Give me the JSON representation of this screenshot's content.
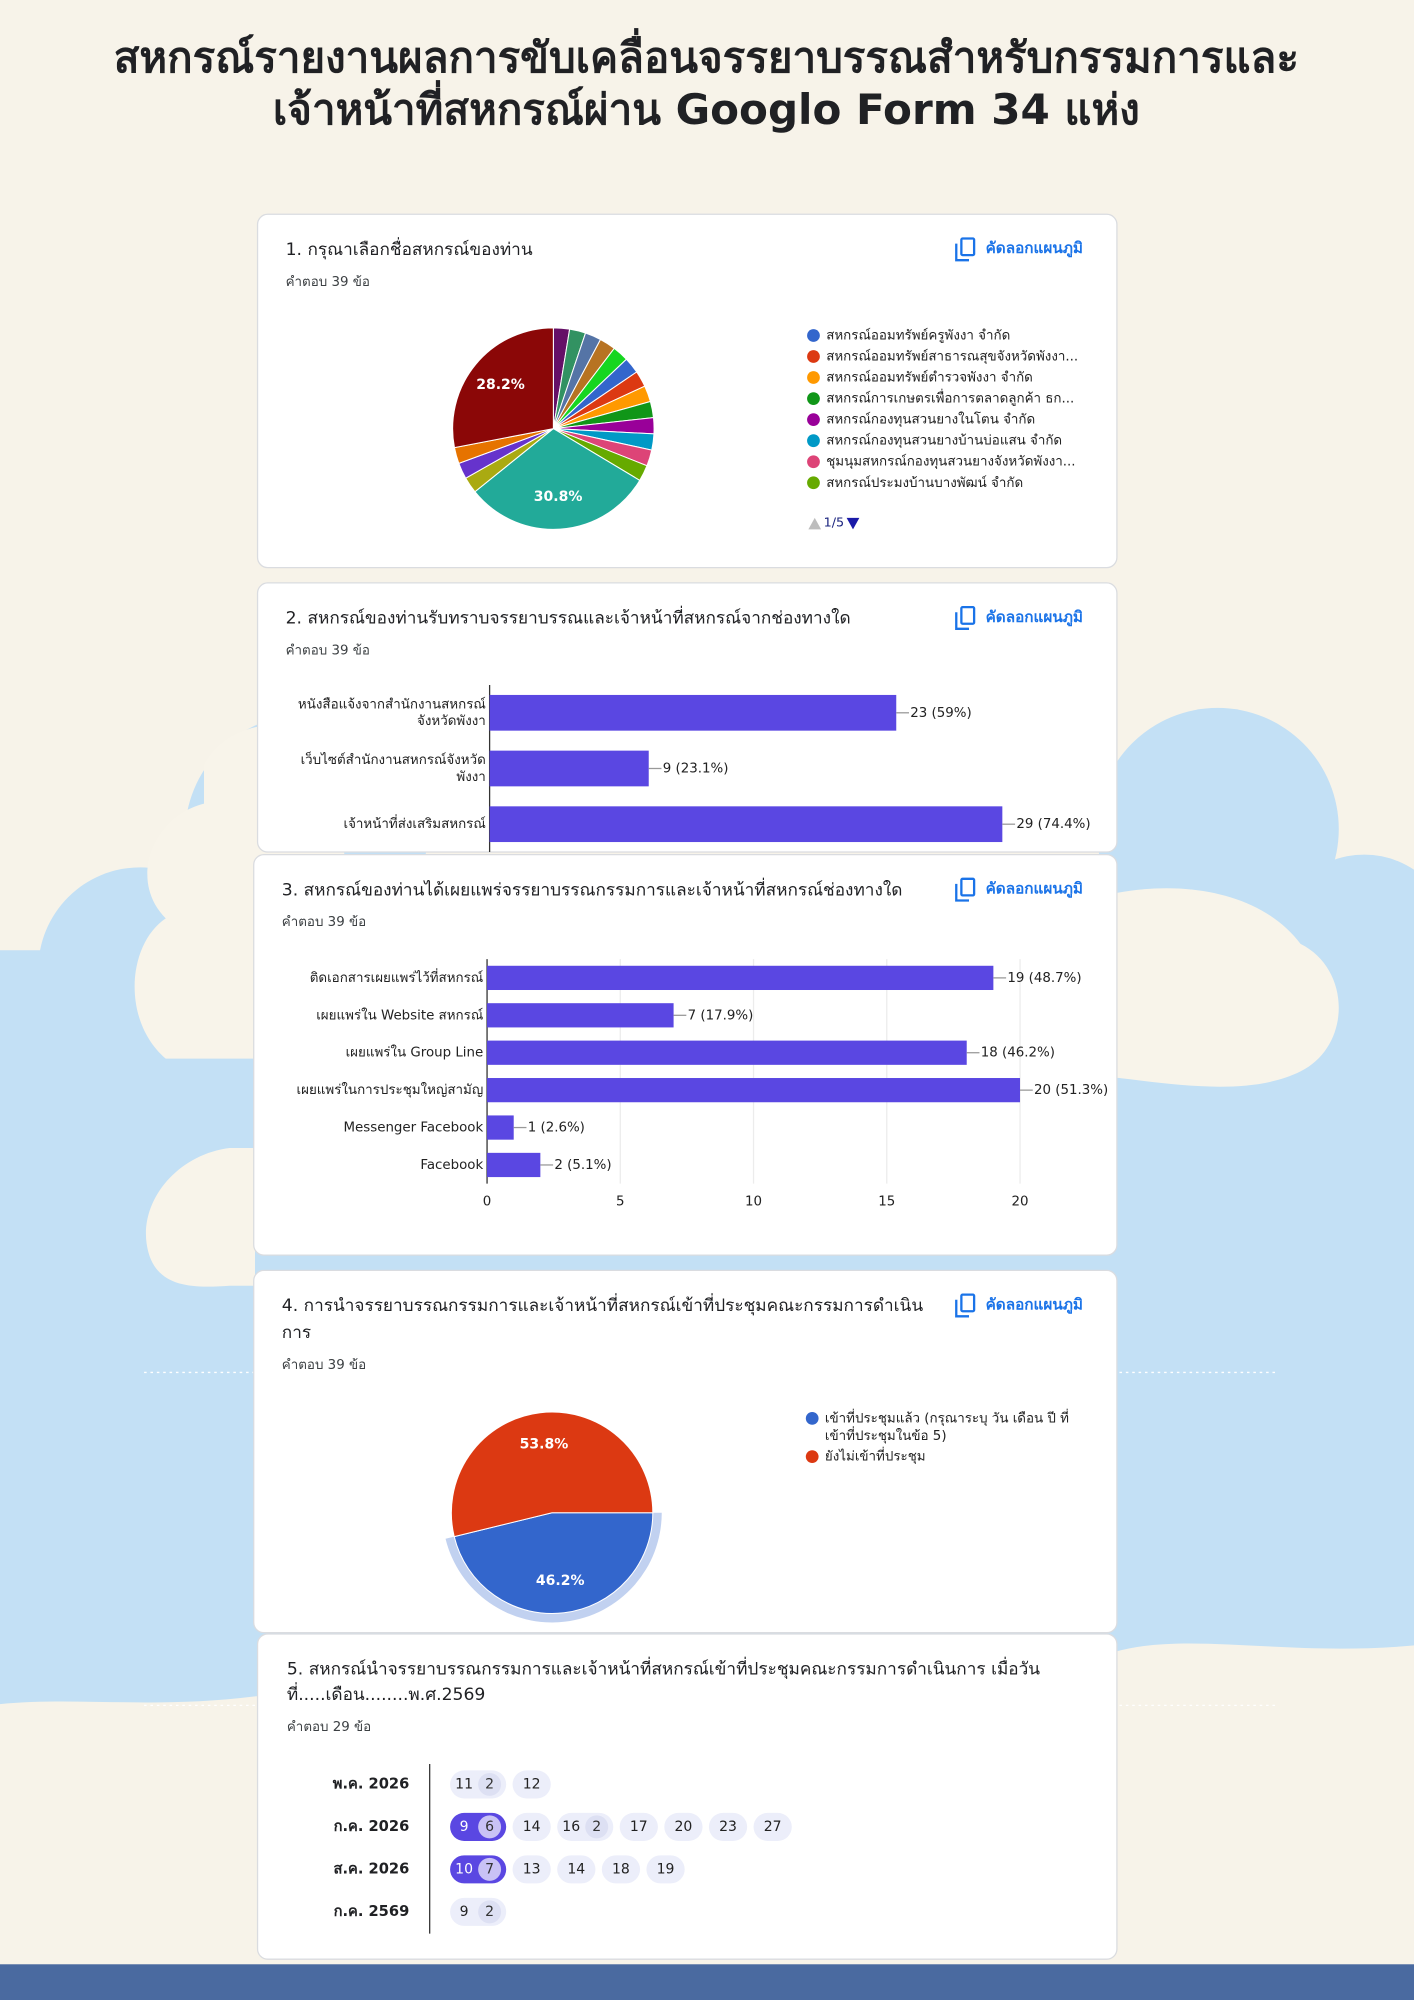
{
  "header": {
    "title": "สหกรณ์รายงานผลการขับเคลื่อนจรรยาบรรณสำหรับกรรมการและ\nเจ้าหน้าที่สหกรณ์ผ่าน Googlo Form 34 แห่ง"
  },
  "chart_data": [
    {
      "type": "pie",
      "title": "1. กรุณาเลือกชื่อสหกรณ์ของท่าน",
      "subtitle": "คำตอบ 39 ข้อ",
      "button": "คัดลอกแผนภูมิ",
      "categories": [
        null,
        null,
        null,
        null,
        null,
        "สหกรณ์ออมทรัพย์ครูพังงา จำกัด",
        "สหกรณ์ออมทรัพย์สาธารณสุขจังหวัดพังงา...",
        "สหกรณ์ออมทรัพย์ตำรวจพังงา จำกัด",
        "สหกรณ์การเกษตรเพื่อการตลาดลูกค้า ธก...",
        "สหกรณ์กองทุนสวนยางในโตน จำกัด",
        "สหกรณ์กองทุนสวนยางบ้านบ่อแสน จำกัด",
        "ชุมนุมสหกรณ์กองทุนสวนยางจังหวัดพังงา...",
        "สหกรณ์ประมงบ้านบางพัฒน์ จำกัด",
        null,
        null,
        null,
        null,
        null
      ],
      "values": [
        2.6,
        2.6,
        2.6,
        2.6,
        2.6,
        2.6,
        2.6,
        2.6,
        2.6,
        2.6,
        2.6,
        2.6,
        2.6,
        30.8,
        2.6,
        2.6,
        2.6,
        28.2
      ],
      "value_labels": [
        null,
        null,
        null,
        null,
        null,
        null,
        null,
        null,
        null,
        null,
        null,
        null,
        null,
        "30.8%",
        null,
        null,
        null,
        "28.2%"
      ],
      "colors": [
        "#651067",
        "#329262",
        "#5574a6",
        "#b77322",
        "#16d620",
        "#3366cc",
        "#dc3912",
        "#ff9900",
        "#109618",
        "#990099",
        "#0099c6",
        "#dd4477",
        "#66aa00",
        "#22aa99",
        "#aaaa11",
        "#6633cc",
        "#e67300",
        "#8b0707"
      ],
      "legend_page": "1/5"
    },
    {
      "type": "bar",
      "orientation": "horizontal",
      "title": "2. สหกรณ์ของท่านรับทราบจรรยาบรรณและเจ้าหน้าที่สหกรณ์จากช่องทางใด",
      "subtitle": "คำตอบ 39 ข้อ",
      "button": "คัดลอกแผนภูมิ",
      "categories": [
        "หนังสือแจ้งจากสำนักงานสหกรณ์\nจังหวัดพังงา",
        "เว็บไซต์สำนักงานสหกรณ์จังหวัด\nพังงา",
        "เจ้าหน้าที่ส่งเสริมสหกรณ์"
      ],
      "values": [
        23,
        9,
        29
      ],
      "value_labels": [
        "23 (59%)",
        "9 (23.1%)",
        "29 (74.4%)"
      ],
      "color": "#5a47e2",
      "xlim": [
        0,
        30
      ]
    },
    {
      "type": "bar",
      "orientation": "horizontal",
      "title": "3. สหกรณ์ของท่านได้เผยแพร่จรรยาบรรณกรรมการและเจ้าหน้าที่สหกรณ์ช่องทางใด",
      "subtitle": "คำตอบ 39 ข้อ",
      "button": "คัดลอกแผนภูมิ",
      "categories": [
        "ติดเอกสารเผยแพร่ไว้ที่สหกรณ์",
        "เผยแพร่ใน Website สหกรณ์",
        "เผยแพร่ใน Group Line",
        "เผยแพร่ในการประชุมใหญ่สามัญ",
        "Messenger Facebook",
        "Facebook"
      ],
      "values": [
        19,
        7,
        18,
        20,
        1,
        2
      ],
      "value_labels": [
        "19 (48.7%)",
        "7 (17.9%)",
        "18 (46.2%)",
        "20 (51.3%)",
        "1 (2.6%)",
        "2 (5.1%)"
      ],
      "color": "#5a47e2",
      "xlim": [
        0,
        20
      ],
      "xticks": [
        0,
        5,
        10,
        15,
        20
      ],
      "grid": true
    },
    {
      "type": "pie",
      "title": "4. การนำจรรยาบรรณกรรมการและเจ้าหน้าที่สหกรณ์เข้าที่ประชุมคณะกรรมการดำเนิน\nการ",
      "subtitle": "คำตอบ 39 ข้อ",
      "button": "คัดลอกแผนภูมิ",
      "categories": [
        "เข้าที่ประชุมแล้ว (กรุณาระบุ วัน เดือน ปี ที่\nเข้าที่ประชุมในข้อ 5)",
        "ยังไม่เข้าที่ประชุม"
      ],
      "values": [
        46.2,
        53.8
      ],
      "value_labels": [
        "46.2%",
        "53.8%"
      ],
      "colors": [
        "#3366cc",
        "#dc3912"
      ]
    }
  ],
  "dates": {
    "title": "5. สหกรณ์นำจรรยาบรรณกรรมการและเจ้าหน้าที่สหกรณ์เข้าที่ประชุมคณะกรรมการดำเนินการ เมื่อวัน\nที่.....เดือน........พ.ศ.2569",
    "subtitle": "คำตอบ 29 ข้อ",
    "rows": [
      {
        "label": "พ.ค. 2026",
        "days": [
          {
            "day": 11,
            "count": 2
          },
          {
            "day": 12
          }
        ]
      },
      {
        "label": "ก.ค. 2026",
        "days": [
          {
            "day": 9,
            "count": 6,
            "selected": true
          },
          {
            "day": 14
          },
          {
            "day": 16,
            "count": 2
          },
          {
            "day": 17
          },
          {
            "day": 20
          },
          {
            "day": 23
          },
          {
            "day": 27
          }
        ]
      },
      {
        "label": "ส.ค. 2026",
        "days": [
          {
            "day": 10,
            "count": 7,
            "selected": true
          },
          {
            "day": 13
          },
          {
            "day": 14
          },
          {
            "day": 18
          },
          {
            "day": 19
          }
        ]
      },
      {
        "label": "ก.ค. 2569",
        "days": [
          {
            "day": 9,
            "count": 2
          }
        ]
      }
    ]
  }
}
